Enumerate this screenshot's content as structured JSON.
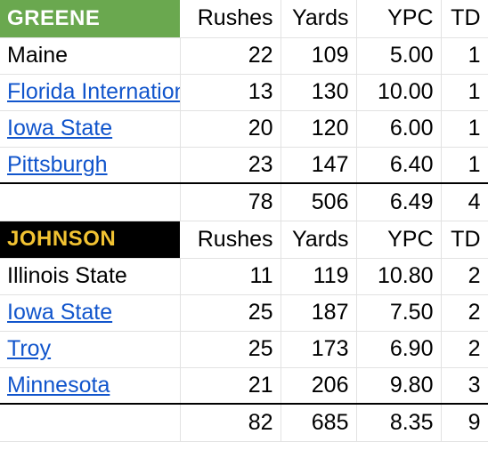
{
  "sections": [
    {
      "player": "GREENE",
      "headers": [
        "Rushes",
        "Yards",
        "YPC",
        "TD"
      ],
      "rows": [
        {
          "opponent": "Maine",
          "link": false,
          "rushes": "22",
          "yards": "109",
          "ypc": "5.00",
          "td": "1"
        },
        {
          "opponent": "Florida International",
          "link": true,
          "rushes": "13",
          "yards": "130",
          "ypc": "10.00",
          "td": "1"
        },
        {
          "opponent": "Iowa State",
          "link": true,
          "rushes": "20",
          "yards": "120",
          "ypc": "6.00",
          "td": "1"
        },
        {
          "opponent": "Pittsburgh",
          "link": true,
          "rushes": "23",
          "yards": "147",
          "ypc": "6.40",
          "td": "1"
        }
      ],
      "totals": {
        "rushes": "78",
        "yards": "506",
        "ypc": "6.49",
        "td": "4"
      }
    },
    {
      "player": "JOHNSON",
      "headers": [
        "Rushes",
        "Yards",
        "YPC",
        "TD"
      ],
      "rows": [
        {
          "opponent": "Illinois State",
          "link": false,
          "rushes": "11",
          "yards": "119",
          "ypc": "10.80",
          "td": "2"
        },
        {
          "opponent": "Iowa State",
          "link": true,
          "rushes": "25",
          "yards": "187",
          "ypc": "7.50",
          "td": "2"
        },
        {
          "opponent": "Troy",
          "link": true,
          "rushes": "25",
          "yards": "173",
          "ypc": "6.90",
          "td": "2"
        },
        {
          "opponent": "Minnesota",
          "link": true,
          "rushes": "21",
          "yards": "206",
          "ypc": "9.80",
          "td": "3"
        }
      ],
      "totals": {
        "rushes": "82",
        "yards": "685",
        "ypc": "8.35",
        "td": "9"
      }
    }
  ],
  "colors": {
    "greene_header": "#6aa84f",
    "johnson_header": "#000000",
    "johnson_text": "#f1c232",
    "link": "#1155cc"
  }
}
